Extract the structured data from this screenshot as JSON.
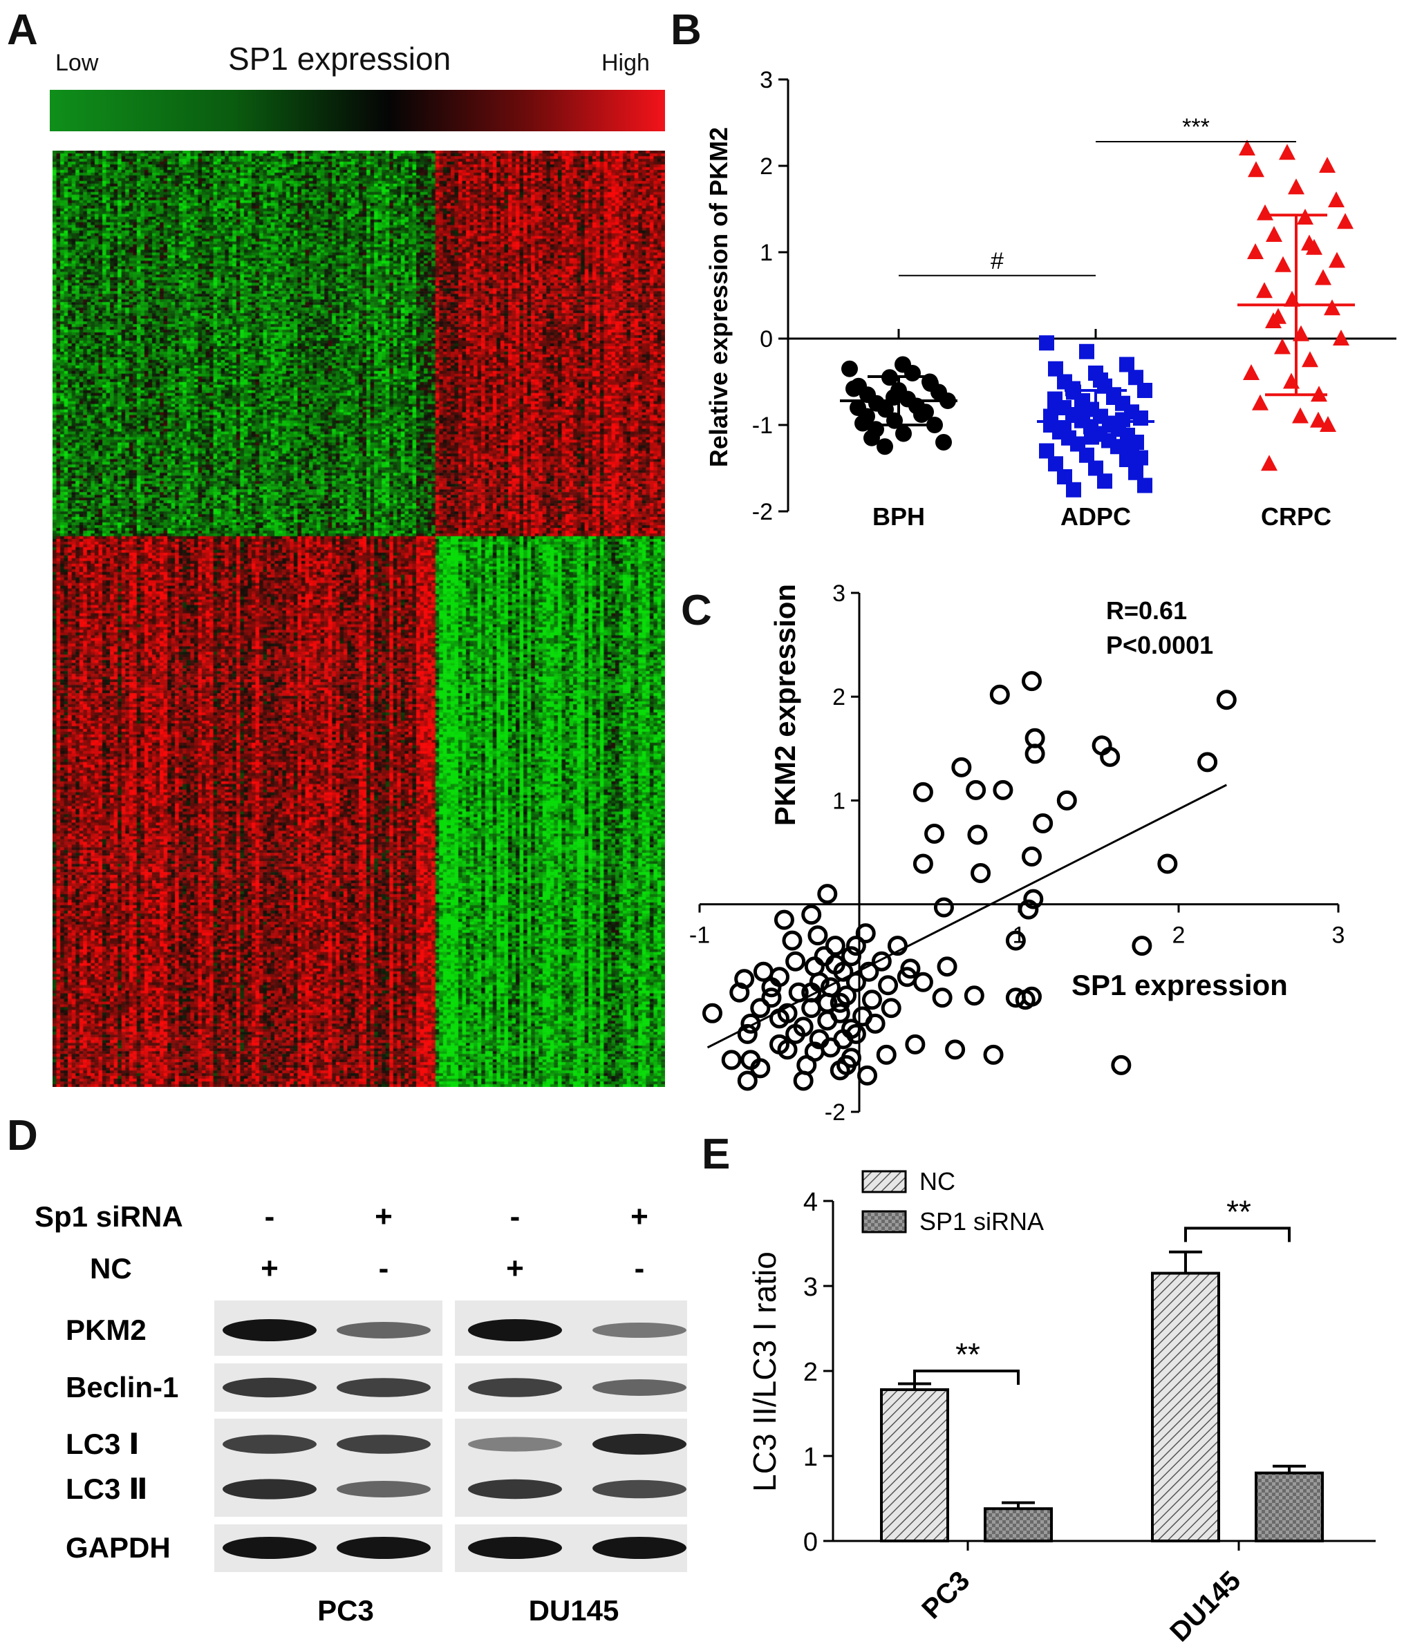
{
  "panels": {
    "a": "A",
    "b": "B",
    "c": "C",
    "d": "D",
    "e": "E"
  },
  "heatmap": {
    "title": "SP1 expression",
    "low_label": "Low",
    "high_label": "High",
    "colors": {
      "low": "#1fd12a",
      "mid": "#050505",
      "high": "#f2131a"
    }
  },
  "chart_data": [
    {
      "id": "B",
      "type": "scatter",
      "ylabel": "Relative expression of PKM2",
      "ylim": [
        -2,
        3
      ],
      "yticks": [
        "-2",
        "-1",
        "0",
        "1",
        "2",
        "3"
      ],
      "categories": [
        "BPH",
        "ADPC",
        "CRPC"
      ],
      "series": [
        {
          "category": "BPH",
          "color": "#000000",
          "marker": "circle",
          "mean": -0.72,
          "sd_low": -1.0,
          "sd_high": -0.44,
          "values": [
            -0.35,
            -0.45,
            -0.5,
            -0.55,
            -0.6,
            -0.62,
            -0.65,
            -0.7,
            -0.72,
            -0.75,
            -0.78,
            -0.8,
            -0.82,
            -0.85,
            -0.9,
            -0.95,
            -1.0,
            -1.05,
            -1.1,
            -1.2,
            -1.25,
            -0.4,
            -0.58,
            -0.68,
            -0.88,
            -0.98,
            -0.3,
            -0.52,
            -1.15
          ]
        },
        {
          "category": "ADPC",
          "color": "#0a14d8",
          "marker": "square",
          "mean": -0.96,
          "sd_low": -1.18,
          "sd_high": -0.6,
          "values": [
            -0.05,
            -0.15,
            -0.3,
            -0.35,
            -0.4,
            -0.45,
            -0.5,
            -0.55,
            -0.6,
            -0.62,
            -0.65,
            -0.7,
            -0.72,
            -0.75,
            -0.8,
            -0.82,
            -0.85,
            -0.88,
            -0.9,
            -0.92,
            -0.95,
            -0.98,
            -1.0,
            -1.02,
            -1.05,
            -1.08,
            -1.1,
            -1.12,
            -1.15,
            -1.18,
            -1.2,
            -1.22,
            -1.25,
            -1.3,
            -1.35,
            -1.4,
            -1.45,
            -1.5,
            -1.55,
            -1.6,
            -1.65,
            -1.7,
            -1.75,
            -0.68,
            -0.78,
            -0.86,
            -0.94,
            -1.06,
            -1.14,
            -1.28,
            -0.58,
            -0.48,
            -1.38,
            -0.74,
            -1.0,
            -0.9
          ]
        },
        {
          "category": "CRPC",
          "color": "#ee1111",
          "marker": "triangle",
          "mean": 0.39,
          "sd_low": -0.65,
          "sd_high": 1.43,
          "values": [
            2.2,
            2.15,
            2.0,
            1.95,
            1.75,
            1.6,
            1.45,
            1.4,
            1.35,
            1.2,
            1.05,
            1.0,
            0.85,
            0.7,
            0.55,
            0.45,
            0.35,
            0.2,
            0.05,
            0.0,
            -0.1,
            -0.25,
            -0.4,
            -0.5,
            -0.65,
            -0.75,
            -0.9,
            -1.0,
            -1.45,
            1.1,
            0.9,
            0.25,
            -0.95
          ]
        }
      ],
      "annotations": [
        {
          "text": "#",
          "from": "BPH",
          "to": "ADPC"
        },
        {
          "text": "***",
          "from": "ADPC",
          "to": "CRPC"
        }
      ]
    },
    {
      "id": "C",
      "type": "scatter",
      "xlabel": "SP1 expression",
      "ylabel": "PKM2 expression",
      "xlim": [
        -1,
        3
      ],
      "ylim": [
        -2,
        3
      ],
      "xticks": [
        "-1",
        "1",
        "2",
        "3"
      ],
      "yticks": [
        "-2",
        "1",
        "2",
        "3"
      ],
      "annotations": [
        "R=0.61",
        "P<0.0001"
      ],
      "fit_line": {
        "x": [
          -0.95,
          2.3
        ],
        "y": [
          -1.38,
          1.15
        ]
      },
      "points": [
        [
          1.08,
          2.15
        ],
        [
          0.88,
          2.02
        ],
        [
          2.3,
          1.97
        ],
        [
          1.1,
          1.6
        ],
        [
          1.1,
          1.45
        ],
        [
          1.52,
          1.53
        ],
        [
          1.57,
          1.42
        ],
        [
          2.18,
          1.37
        ],
        [
          0.64,
          1.32
        ],
        [
          0.4,
          1.08
        ],
        [
          0.73,
          1.1
        ],
        [
          0.9,
          1.1
        ],
        [
          1.3,
          1.0
        ],
        [
          1.15,
          0.78
        ],
        [
          0.47,
          0.68
        ],
        [
          0.74,
          0.67
        ],
        [
          1.08,
          0.46
        ],
        [
          0.4,
          0.39
        ],
        [
          0.76,
          0.3
        ],
        [
          1.93,
          0.39
        ],
        [
          -0.2,
          0.1
        ],
        [
          1.09,
          0.05
        ],
        [
          1.06,
          -0.05
        ],
        [
          0.53,
          -0.03
        ],
        [
          -0.47,
          -0.15
        ],
        [
          -0.3,
          -0.1
        ],
        [
          0.04,
          -0.28
        ],
        [
          -0.26,
          -0.3
        ],
        [
          -0.42,
          -0.35
        ],
        [
          -0.02,
          -0.4
        ],
        [
          0.24,
          -0.4
        ],
        [
          0.98,
          -0.35
        ],
        [
          1.77,
          -0.4
        ],
        [
          -0.15,
          -0.4
        ],
        [
          -0.05,
          -0.5
        ],
        [
          0.14,
          -0.55
        ],
        [
          -0.6,
          -0.65
        ],
        [
          -0.72,
          -0.72
        ],
        [
          -0.5,
          -0.7
        ],
        [
          -0.28,
          -0.6
        ],
        [
          -0.1,
          -0.65
        ],
        [
          0.06,
          -0.65
        ],
        [
          0.32,
          -0.62
        ],
        [
          0.55,
          -0.6
        ],
        [
          -0.75,
          -0.85
        ],
        [
          -0.55,
          -0.9
        ],
        [
          -0.38,
          -0.85
        ],
        [
          -0.18,
          -0.8
        ],
        [
          -0.02,
          -0.75
        ],
        [
          0.18,
          -0.78
        ],
        [
          0.4,
          -0.75
        ],
        [
          -0.62,
          -1.0
        ],
        [
          -0.45,
          -1.05
        ],
        [
          -0.3,
          -1.0
        ],
        [
          -0.12,
          -0.95
        ],
        [
          0.08,
          -0.92
        ],
        [
          0.52,
          -0.9
        ],
        [
          0.72,
          -0.88
        ],
        [
          0.98,
          -0.9
        ],
        [
          1.04,
          -0.92
        ],
        [
          1.08,
          -0.89
        ],
        [
          -0.92,
          -1.05
        ],
        [
          -0.68,
          -1.15
        ],
        [
          -0.5,
          -1.1
        ],
        [
          -0.35,
          -1.18
        ],
        [
          -0.2,
          -1.12
        ],
        [
          -0.05,
          -1.2
        ],
        [
          0.1,
          -1.15
        ],
        [
          -0.7,
          -1.25
        ],
        [
          -0.1,
          -1.3
        ],
        [
          0.35,
          -1.35
        ],
        [
          0.6,
          -1.4
        ],
        [
          -0.45,
          -1.4
        ],
        [
          -0.28,
          -1.42
        ],
        [
          -0.05,
          -1.48
        ],
        [
          0.17,
          -1.45
        ],
        [
          -0.68,
          -1.5
        ],
        [
          -0.08,
          -1.55
        ],
        [
          0.84,
          -1.45
        ],
        [
          1.64,
          -1.55
        ],
        [
          -0.8,
          -1.5
        ],
        [
          -0.62,
          -1.58
        ],
        [
          -0.33,
          -1.55
        ],
        [
          -0.12,
          -1.6
        ],
        [
          0.05,
          -1.65
        ],
        [
          -0.7,
          -1.7
        ],
        [
          -0.35,
          -1.7
        ],
        [
          -0.4,
          -0.55
        ],
        [
          -0.15,
          -0.58
        ],
        [
          -0.25,
          -0.75
        ],
        [
          -0.2,
          -0.95
        ],
        [
          -0.3,
          -0.85
        ],
        [
          -0.12,
          -1.05
        ],
        [
          -0.25,
          -1.3
        ],
        [
          -0.4,
          -1.25
        ],
        [
          0.2,
          -1.0
        ],
        [
          -0.55,
          -0.8
        ],
        [
          0.02,
          -1.08
        ],
        [
          -0.18,
          -1.38
        ],
        [
          -0.5,
          -1.35
        ],
        [
          -0.08,
          -0.88
        ],
        [
          0.3,
          -0.7
        ],
        [
          -0.02,
          -1.25
        ],
        [
          -0.22,
          -0.5
        ]
      ]
    },
    {
      "id": "E",
      "type": "bar",
      "ylabel": "LC3 II/LC3 I ratio",
      "ylim": [
        0,
        4
      ],
      "yticks": [
        "0",
        "1",
        "2",
        "3",
        "4"
      ],
      "categories": [
        "PC3",
        "DU145"
      ],
      "series": [
        {
          "name": "NC",
          "values": [
            1.78,
            3.15
          ],
          "errors": [
            0.07,
            0.25
          ]
        },
        {
          "name": "SP1 siRNA",
          "values": [
            0.38,
            0.8
          ],
          "errors": [
            0.07,
            0.08
          ]
        }
      ],
      "annotations": [
        {
          "category": "PC3",
          "text": "**"
        },
        {
          "category": "DU145",
          "text": "**"
        }
      ]
    }
  ],
  "blot": {
    "conditions": [
      {
        "label": "Sp1 siRNA",
        "values": [
          "-",
          "+",
          "-",
          "+"
        ]
      },
      {
        "label": "NC",
        "values": [
          "+",
          "-",
          "+",
          "-"
        ]
      }
    ],
    "rows": [
      "PKM2",
      "Beclin-1",
      "LC3 Ⅰ",
      "LC3 Ⅱ",
      "GAPDH"
    ],
    "cell_lines": [
      "PC3",
      "DU145"
    ]
  }
}
